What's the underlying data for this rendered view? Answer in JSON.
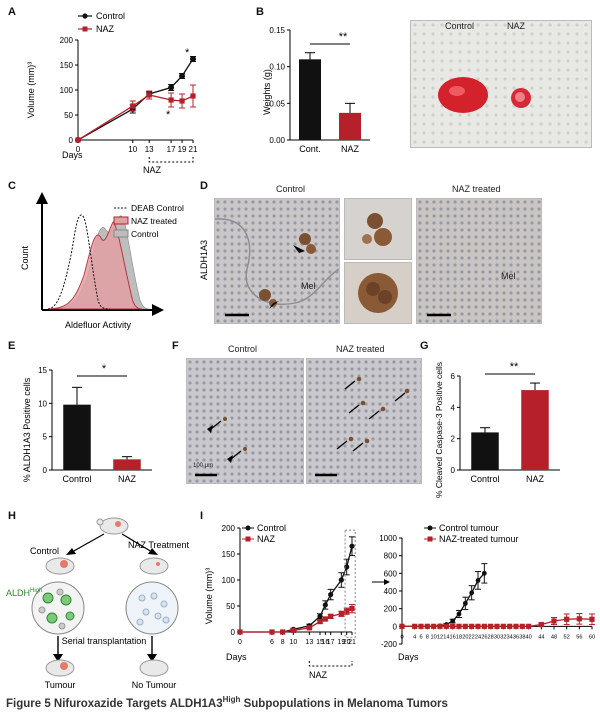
{
  "panels": {
    "A": {
      "letter": "A",
      "legend": [
        "Control",
        "NAZ"
      ],
      "ylabel": "Volume (mm)³",
      "xlabel": "Days",
      "bracket_label": "NAZ",
      "asterisks": [
        "*",
        "*"
      ]
    },
    "B": {
      "letter": "B",
      "ylabel": "Weights (g)",
      "significance": "**",
      "photo_labels": [
        "Control",
        "NAZ"
      ]
    },
    "C": {
      "letter": "C",
      "legend": [
        "DEAB Control",
        "NAZ treated",
        "Control"
      ],
      "ylabel": "Count",
      "xlabel": "Aldefluor Activity"
    },
    "D": {
      "letter": "D",
      "col_labels": [
        "Control",
        "NAZ treated"
      ],
      "row_label": "ALDH1A3",
      "mel_label": "Mel"
    },
    "E": {
      "letter": "E",
      "ylabel": "% ALDH1A3 Positive cells",
      "significance": "*"
    },
    "F": {
      "letter": "F",
      "col_labels": [
        "Control",
        "NAZ treated"
      ],
      "scale_label": "100 µm"
    },
    "G": {
      "letter": "G",
      "ylabel": "% Cleaved Caspase-3 Positive cells",
      "significance": "**"
    },
    "H": {
      "letter": "H",
      "control_label": "Control",
      "treatment_label": "NAZ Treatment",
      "aldh_label": "ALDH",
      "aldh_sup": "High",
      "transplant_label": "Serial transplantation",
      "outcome_left": "Tumour",
      "outcome_right": "No Tumour"
    },
    "I": {
      "letter": "I",
      "legend_left": [
        "Control",
        "NAZ"
      ],
      "legend_right": [
        "Control tumour",
        "NAZ-treated tumour"
      ],
      "ylabel": "Volume (mm)³",
      "xlabel": "Days",
      "bracket_label": "NAZ"
    }
  },
  "caption": {
    "main": "Figure 5 Nifuroxazide Targets ALDH1A3",
    "sup": "High",
    "rest": " Subpopulations in Melanoma Tumors"
  },
  "colors": {
    "control": "#111111",
    "naz": "#b5202a",
    "grey": "#bdbdbd"
  },
  "chart_data": [
    {
      "panel": "A",
      "type": "line",
      "x": [
        0,
        10,
        13,
        17,
        19,
        21
      ],
      "xlabel": "Days",
      "ylabel": "Volume (mm)³",
      "ylim": [
        0,
        200
      ],
      "series": [
        {
          "name": "Control",
          "values": [
            0,
            62,
            92,
            105,
            128,
            162
          ]
        },
        {
          "name": "NAZ",
          "values": [
            0,
            68,
            90,
            80,
            78,
            88
          ]
        }
      ]
    },
    {
      "panel": "B",
      "type": "bar",
      "categories": [
        "Cont.",
        "NAZ"
      ],
      "values": [
        0.11,
        0.037
      ],
      "ylabel": "Weights (g)",
      "ylim": [
        0,
        0.15
      ]
    },
    {
      "panel": "E",
      "type": "bar",
      "categories": [
        "Control",
        "NAZ"
      ],
      "values": [
        9.8,
        1.6
      ],
      "ylabel": "% ALDH1A3 Positive cells",
      "ylim": [
        0,
        15
      ]
    },
    {
      "panel": "G",
      "type": "bar",
      "categories": [
        "Control",
        "NAZ"
      ],
      "values": [
        2.4,
        5.1
      ],
      "ylabel": "% Cleaved Caspase-3 Positive cells",
      "ylim": [
        0,
        6
      ]
    },
    {
      "panel": "I-left",
      "type": "line",
      "x": [
        0,
        6,
        8,
        10,
        13,
        15,
        16,
        17,
        19,
        20,
        21
      ],
      "xlabel": "Days",
      "ylabel": "Volume (mm)³",
      "ylim": [
        0,
        200
      ],
      "series": [
        {
          "name": "Control",
          "values": [
            0,
            0,
            0,
            5,
            12,
            30,
            52,
            72,
            100,
            125,
            165
          ]
        },
        {
          "name": "NAZ",
          "values": [
            0,
            0,
            0,
            3,
            8,
            20,
            25,
            30,
            35,
            40,
            45
          ]
        }
      ]
    },
    {
      "panel": "I-right",
      "type": "line",
      "x": [
        0,
        4,
        6,
        8,
        10,
        12,
        14,
        16,
        18,
        20,
        22,
        24,
        26,
        28,
        30,
        32,
        34,
        36,
        38,
        40,
        44,
        48,
        52,
        56,
        60
      ],
      "xlabel": "Days",
      "ylim": [
        -200,
        1000
      ],
      "series": [
        {
          "name": "Control tumour",
          "x": [
            0,
            4,
            6,
            8,
            10,
            12,
            14,
            16,
            18,
            20,
            22,
            24,
            26
          ],
          "values": [
            0,
            0,
            0,
            0,
            0,
            5,
            20,
            60,
            140,
            260,
            380,
            520,
            600
          ]
        },
        {
          "name": "NAZ-treated tumour",
          "x": [
            0,
            4,
            6,
            8,
            10,
            12,
            14,
            16,
            18,
            20,
            22,
            24,
            26,
            28,
            30,
            32,
            34,
            36,
            38,
            40,
            44,
            48,
            52,
            56,
            60
          ],
          "values": [
            0,
            0,
            0,
            0,
            0,
            0,
            0,
            0,
            0,
            0,
            0,
            0,
            0,
            0,
            0,
            0,
            0,
            0,
            0,
            0,
            20,
            60,
            80,
            85,
            80
          ]
        }
      ]
    }
  ]
}
